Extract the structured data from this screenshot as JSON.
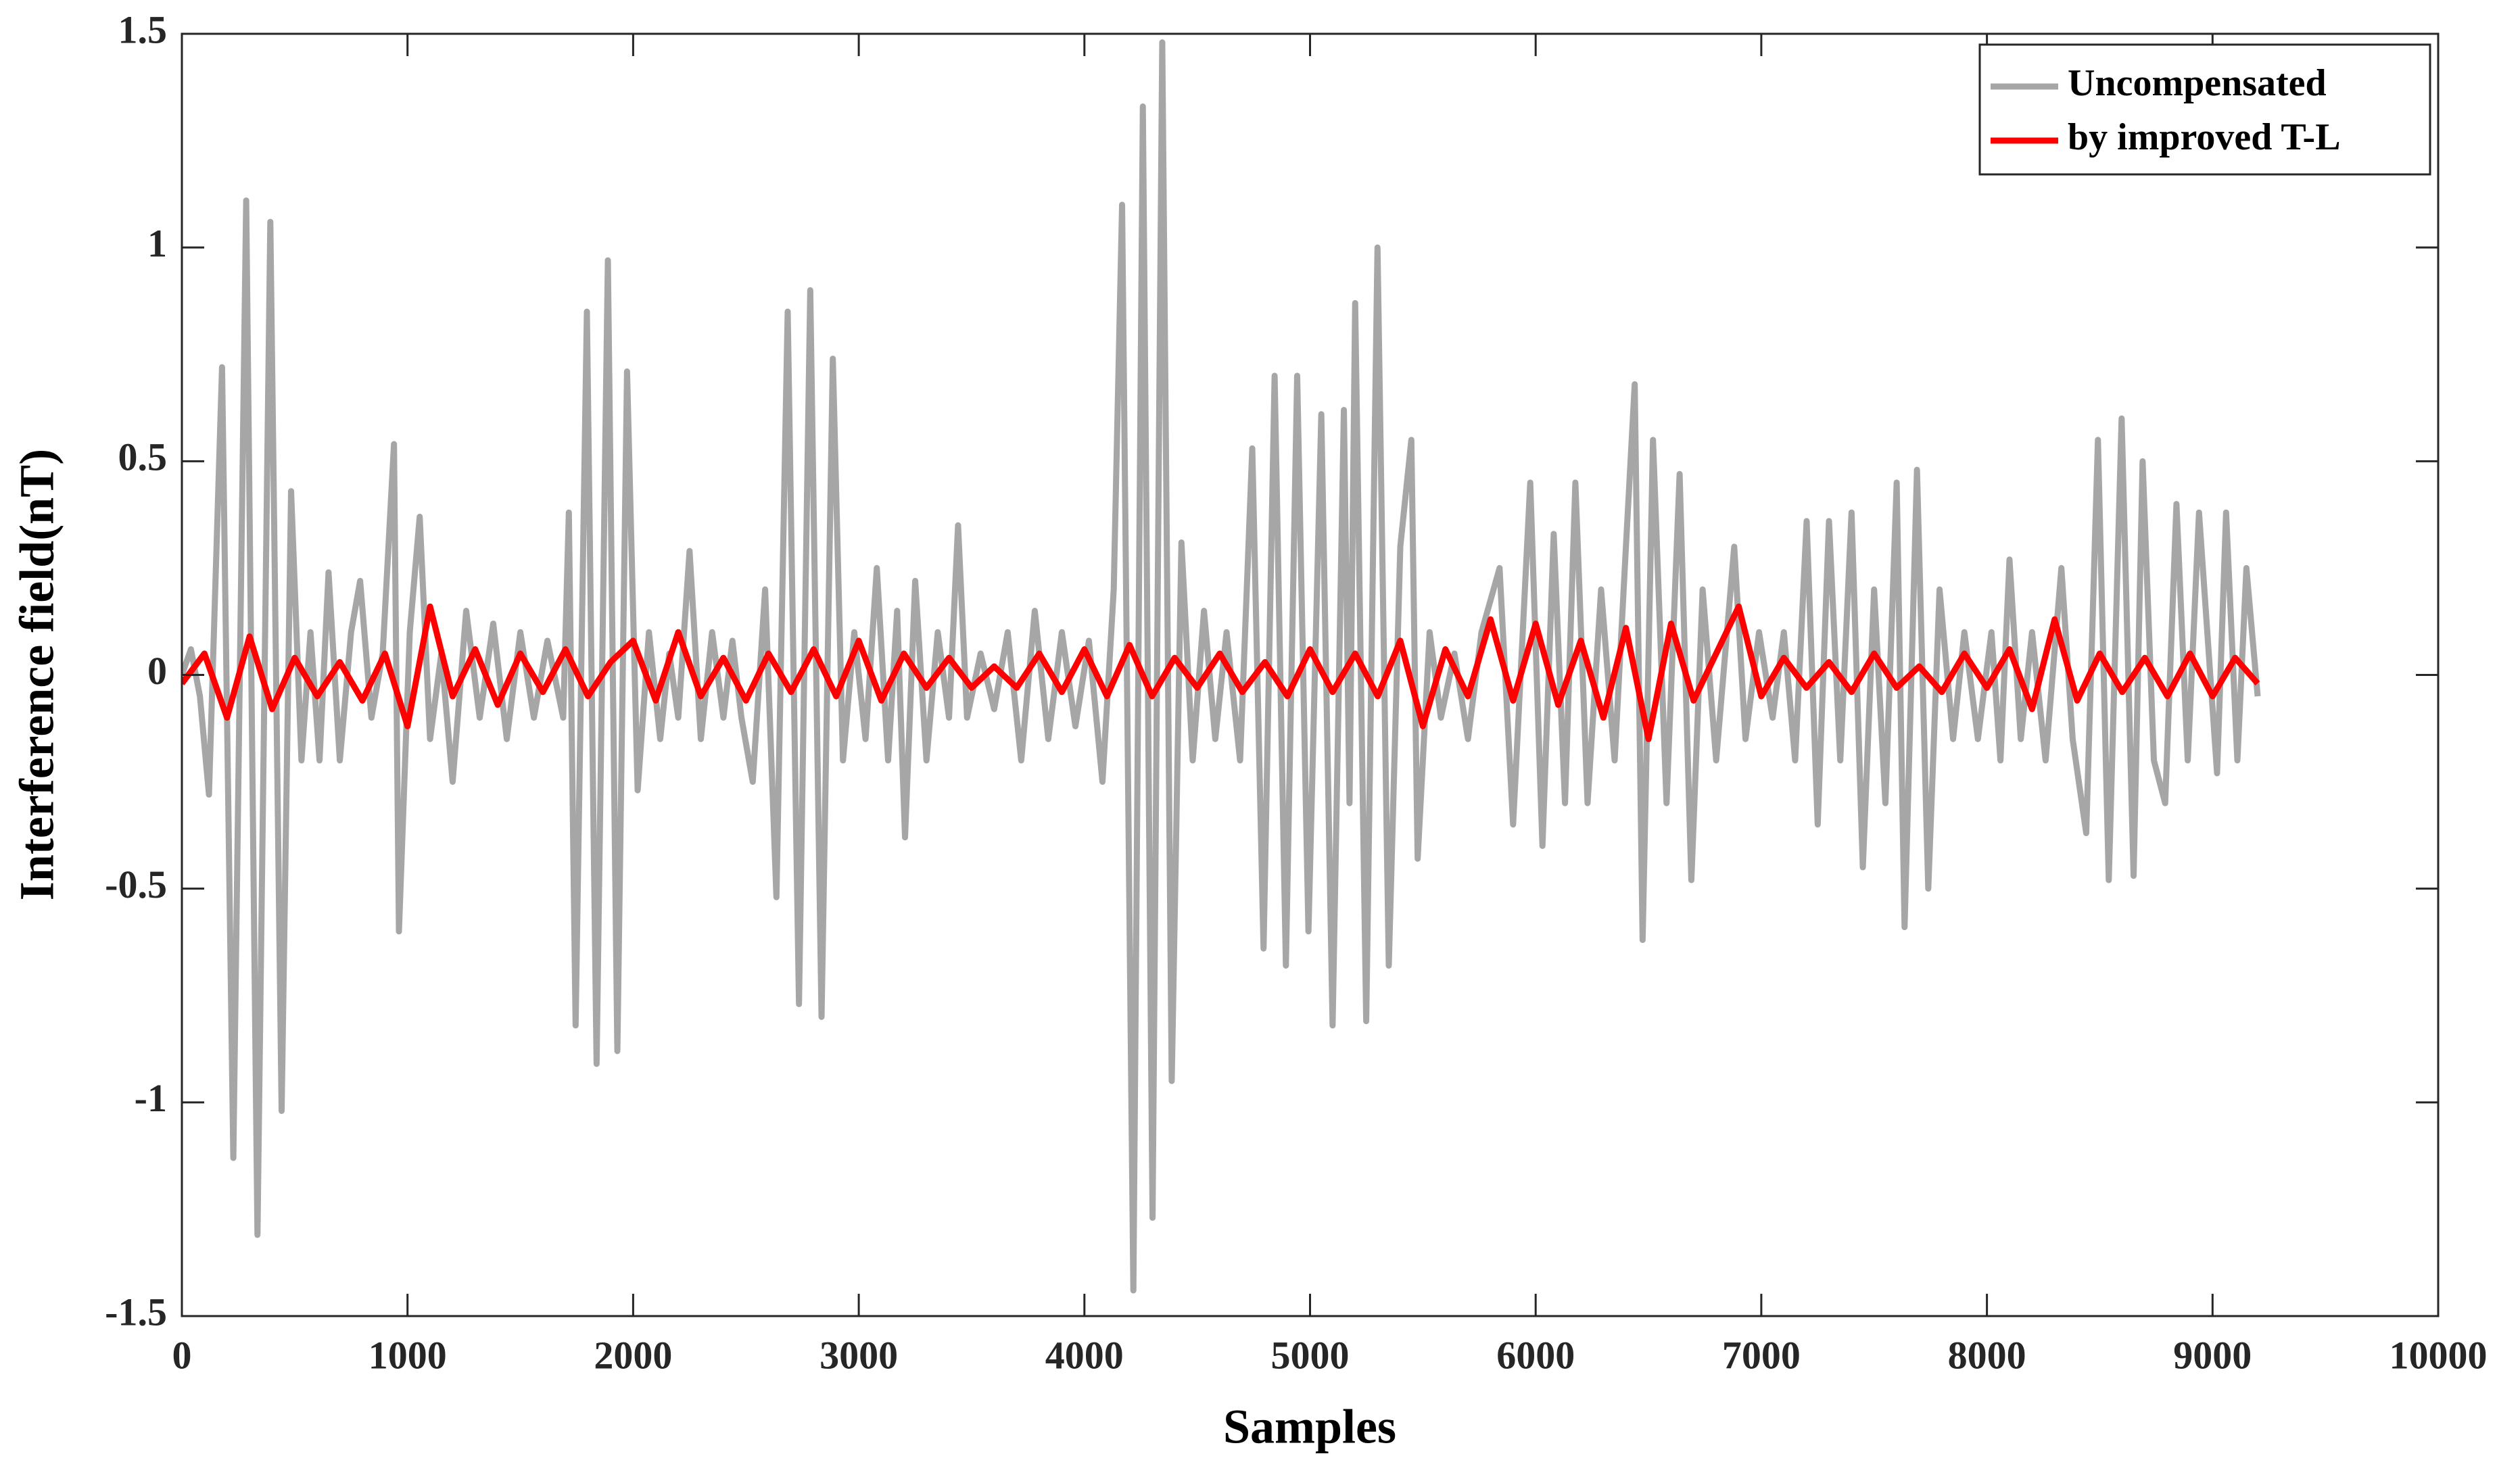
{
  "chart_data": {
    "type": "line",
    "xlabel": "Samples",
    "ylabel": "Interference field(nT)",
    "xlim": [
      0,
      10000
    ],
    "xticks": [
      0,
      1000,
      2000,
      3000,
      4000,
      5000,
      6000,
      7000,
      8000,
      9000,
      10000
    ],
    "ylim": [
      -1.5,
      1.5
    ],
    "yticks": [
      -1.5,
      -1,
      -0.5,
      0,
      0.5,
      1,
      1.5
    ],
    "legend": "top-right",
    "box": true,
    "series": [
      {
        "name": "Uncompensated",
        "color": "#a6a6a6",
        "x": [
          0,
          40,
          80,
          120,
          178,
          228,
          285,
          335,
          392,
          442,
          484,
          530,
          570,
          610,
          650,
          700,
          750,
          790,
          840,
          890,
          940,
          962,
          1010,
          1054,
          1100,
          1150,
          1200,
          1260,
          1320,
          1380,
          1440,
          1500,
          1560,
          1620,
          1690,
          1715,
          1745,
          1795,
          1838,
          1888,
          1930,
          1973,
          2020,
          2070,
          2120,
          2160,
          2200,
          2250,
          2300,
          2350,
          2400,
          2440,
          2480,
          2530,
          2585,
          2635,
          2685,
          2735,
          2785,
          2835,
          2885,
          2930,
          2980,
          3030,
          3080,
          3130,
          3170,
          3205,
          3250,
          3300,
          3350,
          3400,
          3440,
          3480,
          3540,
          3600,
          3660,
          3720,
          3780,
          3840,
          3900,
          3960,
          4020,
          4080,
          4130,
          4167,
          4217,
          4259,
          4302,
          4345,
          4387,
          4430,
          4480,
          4530,
          4580,
          4630,
          4690,
          4744,
          4794,
          4843,
          4893,
          4943,
          4993,
          5050,
          5100,
          5150,
          5175,
          5200,
          5249,
          5299,
          5349,
          5400,
          5449,
          5477,
          5530,
          5580,
          5640,
          5700,
          5760,
          5840,
          5900,
          5976,
          6030,
          6080,
          6130,
          6176,
          6230,
          6290,
          6350,
          6400,
          6439,
          6474,
          6520,
          6580,
          6638,
          6690,
          6740,
          6800,
          6880,
          6930,
          6990,
          7050,
          7100,
          7150,
          7201,
          7250,
          7300,
          7350,
          7400,
          7450,
          7500,
          7550,
          7600,
          7635,
          7690,
          7740,
          7790,
          7850,
          7900,
          7960,
          8020,
          8060,
          8100,
          8150,
          8200,
          8260,
          8330,
          8380,
          8440,
          8492,
          8540,
          8597,
          8650,
          8690,
          8740,
          8790,
          8840,
          8890,
          8940,
          9020,
          9060,
          9110,
          9150,
          9200
        ],
        "values": [
          0,
          0.06,
          -0.05,
          -0.28,
          0.72,
          -1.13,
          1.11,
          -1.31,
          1.06,
          -1.02,
          0.43,
          -0.2,
          0.1,
          -0.2,
          0.24,
          -0.2,
          0.1,
          0.22,
          -0.1,
          0.05,
          0.54,
          -0.6,
          0.1,
          0.37,
          -0.15,
          0.05,
          -0.25,
          0.15,
          -0.1,
          0.12,
          -0.15,
          0.1,
          -0.1,
          0.08,
          -0.1,
          0.38,
          -0.82,
          0.85,
          -0.91,
          0.97,
          -0.88,
          0.71,
          -0.27,
          0.1,
          -0.15,
          0.05,
          -0.1,
          0.29,
          -0.15,
          0.1,
          -0.1,
          0.08,
          -0.1,
          -0.25,
          0.2,
          -0.52,
          0.85,
          -0.77,
          0.9,
          -0.8,
          0.74,
          -0.2,
          0.1,
          -0.15,
          0.25,
          -0.2,
          0.15,
          -0.38,
          0.22,
          -0.2,
          0.1,
          -0.1,
          0.35,
          -0.1,
          0.05,
          -0.08,
          0.1,
          -0.2,
          0.15,
          -0.15,
          0.1,
          -0.12,
          0.08,
          -0.25,
          0.2,
          1.1,
          -1.44,
          1.33,
          -1.27,
          1.48,
          -0.95,
          0.31,
          -0.2,
          0.15,
          -0.15,
          0.1,
          -0.2,
          0.53,
          -0.64,
          0.7,
          -0.68,
          0.7,
          -0.6,
          0.61,
          -0.82,
          0.62,
          -0.3,
          0.87,
          -0.81,
          1.0,
          -0.68,
          0.3,
          0.55,
          -0.43,
          0.1,
          -0.1,
          0.05,
          -0.15,
          0.1,
          0.25,
          -0.35,
          0.45,
          -0.4,
          0.33,
          -0.3,
          0.45,
          -0.3,
          0.2,
          -0.2,
          0.3,
          0.68,
          -0.62,
          0.55,
          -0.3,
          0.47,
          -0.48,
          0.2,
          -0.2,
          0.3,
          -0.15,
          0.1,
          -0.1,
          0.1,
          -0.2,
          0.36,
          -0.35,
          0.36,
          -0.2,
          0.38,
          -0.45,
          0.2,
          -0.3,
          0.45,
          -0.59,
          0.48,
          -0.5,
          0.2,
          -0.15,
          0.1,
          -0.15,
          0.1,
          -0.2,
          0.27,
          -0.15,
          0.1,
          -0.2,
          0.25,
          -0.15,
          -0.37,
          0.55,
          -0.48,
          0.6,
          -0.47,
          0.5,
          -0.2,
          -0.3,
          0.4,
          -0.2,
          0.38,
          -0.23,
          0.38,
          -0.2,
          0.25,
          -0.05
        ]
      },
      {
        "name": "by improved T-L",
        "color": "#ff0000",
        "x": [
          0,
          100,
          200,
          300,
          400,
          500,
          600,
          700,
          800,
          900,
          1000,
          1100,
          1200,
          1300,
          1400,
          1500,
          1600,
          1700,
          1800,
          1900,
          2000,
          2100,
          2200,
          2300,
          2400,
          2500,
          2600,
          2700,
          2800,
          2900,
          3000,
          3100,
          3200,
          3300,
          3400,
          3500,
          3600,
          3700,
          3800,
          3900,
          4000,
          4100,
          4200,
          4300,
          4400,
          4500,
          4600,
          4700,
          4800,
          4900,
          5000,
          5100,
          5200,
          5300,
          5400,
          5500,
          5600,
          5700,
          5800,
          5900,
          6000,
          6100,
          6200,
          6300,
          6400,
          6500,
          6600,
          6700,
          6800,
          6900,
          7000,
          7100,
          7200,
          7300,
          7400,
          7500,
          7600,
          7700,
          7800,
          7900,
          8000,
          8100,
          8200,
          8300,
          8400,
          8500,
          8600,
          8700,
          8800,
          8900,
          9000,
          9100,
          9200
        ],
        "values": [
          -0.02,
          0.05,
          -0.1,
          0.09,
          -0.08,
          0.04,
          -0.05,
          0.03,
          -0.06,
          0.05,
          -0.12,
          0.16,
          -0.05,
          0.06,
          -0.07,
          0.05,
          -0.04,
          0.06,
          -0.05,
          0.03,
          0.08,
          -0.06,
          0.1,
          -0.05,
          0.04,
          -0.06,
          0.05,
          -0.04,
          0.06,
          -0.05,
          0.08,
          -0.06,
          0.05,
          -0.03,
          0.04,
          -0.03,
          0.02,
          -0.03,
          0.05,
          -0.04,
          0.06,
          -0.05,
          0.07,
          -0.05,
          0.04,
          -0.03,
          0.05,
          -0.04,
          0.03,
          -0.05,
          0.06,
          -0.04,
          0.05,
          -0.05,
          0.08,
          -0.12,
          0.06,
          -0.05,
          0.13,
          -0.06,
          0.12,
          -0.07,
          0.08,
          -0.1,
          0.11,
          -0.15,
          0.12,
          -0.06,
          0.05,
          0.16,
          -0.05,
          0.04,
          -0.03,
          0.03,
          -0.04,
          0.05,
          -0.03,
          0.02,
          -0.04,
          0.05,
          -0.03,
          0.06,
          -0.08,
          0.13,
          -0.06,
          0.05,
          -0.04,
          0.04,
          -0.05,
          0.05,
          -0.05,
          0.04,
          -0.02
        ]
      }
    ]
  }
}
